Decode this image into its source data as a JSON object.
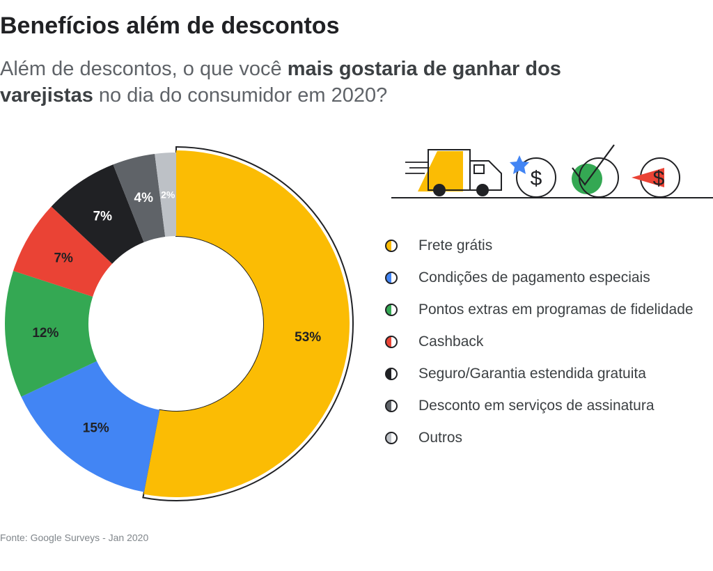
{
  "header": {
    "title": "Benefícios além de descontos",
    "subtitle_part1": "Além de descontos, o que você ",
    "subtitle_bold": "mais gostaria de ganhar dos varejistas",
    "subtitle_part2": " no dia do consumidor em 2020?"
  },
  "chart_data": {
    "type": "pie",
    "variant": "donut",
    "categories": [
      "Frete grátis",
      "Condições de pagamento especiais",
      "Pontos extras em programas de fidelidade",
      "Cashback",
      "Seguro/Garantia estendida gratuita",
      "Desconto em serviços de assinatura",
      "Outros"
    ],
    "values": [
      53,
      15,
      12,
      7,
      7,
      4,
      2
    ],
    "labels": [
      "53%",
      "15%",
      "12%",
      "7%",
      "7%",
      "4%",
      "2%"
    ],
    "colors": [
      "#FBBC04",
      "#4285F4",
      "#34A853",
      "#EA4335",
      "#202124",
      "#5F6368",
      "#BDC1C6"
    ],
    "label_colors": [
      "#202124",
      "#202124",
      "#202124",
      "#202124",
      "#ffffff",
      "#ffffff",
      "#ffffff"
    ],
    "highlighted": "Frete grátis",
    "legend_position": "right"
  },
  "icons": [
    "delivery-truck-icon",
    "star-dollar-icon",
    "checkmark-icon",
    "arrow-dollar-icon"
  ],
  "source": "Fonte: Google Surveys - Jan 2020"
}
